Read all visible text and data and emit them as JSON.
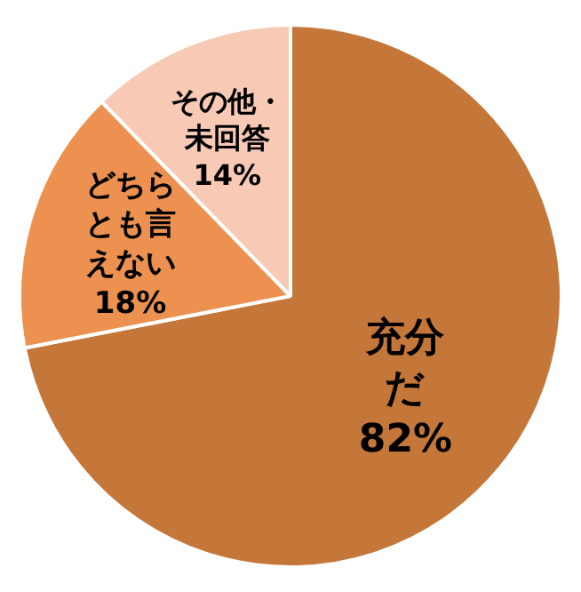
{
  "chart_data": {
    "type": "pie",
    "categories": [
      "充分だ",
      "どちらとも言えない",
      "その他・未回答"
    ],
    "values": [
      82,
      18,
      14
    ],
    "colors": [
      "#c5773a",
      "#ec914f",
      "#f8c9b4"
    ],
    "value_labels": [
      "82%",
      "18%",
      "14%"
    ],
    "legend": false
  }
}
